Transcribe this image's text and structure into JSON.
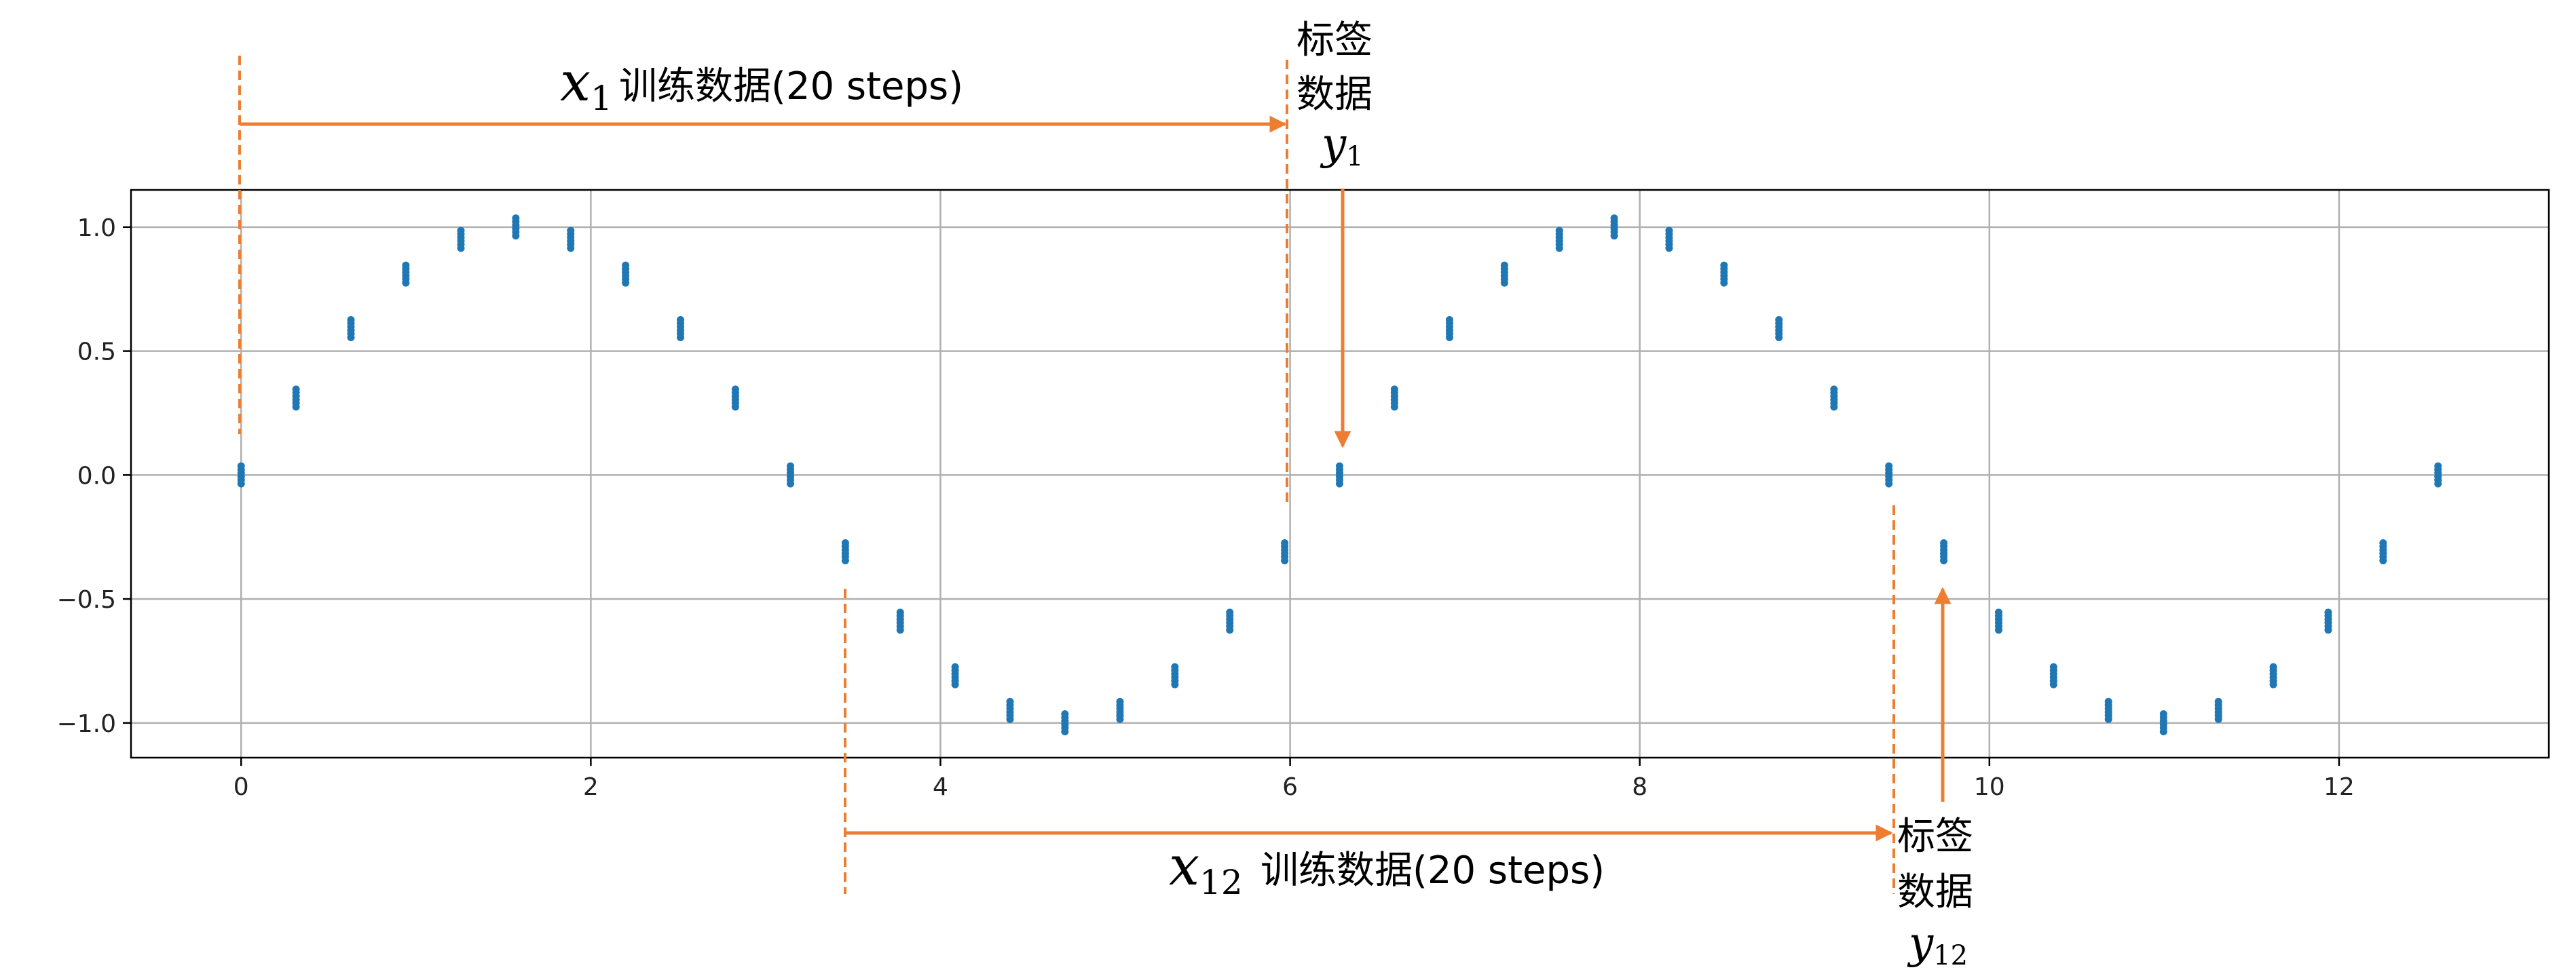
{
  "chart_data": {
    "type": "scatter",
    "title": "",
    "xlabel": "",
    "ylabel": "",
    "xlim": [
      -0.63,
      13.2
    ],
    "ylim": [
      -1.14,
      1.15
    ],
    "xticks": [
      0,
      2,
      4,
      6,
      8,
      10,
      12
    ],
    "yticks": [
      -1.0,
      -0.5,
      0.0,
      0.5,
      1.0
    ],
    "xtick_labels": [
      "0",
      "2",
      "4",
      "6",
      "8",
      "10",
      "12"
    ],
    "ytick_labels": [
      "−1.0",
      "−0.5",
      "0.0",
      "0.5",
      "1.0"
    ],
    "grid": true,
    "marker_color": "#1f77b4",
    "series": [
      {
        "x": [
          0,
          0.314,
          0.628,
          0.942,
          1.257,
          1.571,
          1.885,
          2.199,
          2.513,
          2.827,
          3.142,
          3.456,
          3.77,
          4.084,
          4.398,
          4.712,
          5.027,
          5.341,
          5.655,
          5.969,
          6.283,
          6.597,
          6.912,
          7.226,
          7.54,
          7.854,
          8.168,
          8.482,
          8.796,
          9.111,
          9.425,
          9.739,
          10.053,
          10.367,
          10.681,
          10.996,
          11.31,
          11.624,
          11.938,
          12.252,
          12.566
        ],
        "y": [
          0.0,
          0.31,
          0.59,
          0.81,
          0.95,
          1.0,
          0.95,
          0.81,
          0.59,
          0.31,
          0.0,
          -0.31,
          -0.59,
          -0.81,
          -0.95,
          -1.0,
          -0.95,
          -0.81,
          -0.59,
          -0.31,
          0.0,
          0.31,
          0.59,
          0.81,
          0.95,
          1.0,
          0.95,
          0.81,
          0.59,
          0.31,
          0.0,
          -0.31,
          -0.59,
          -0.81,
          -0.95,
          -1.0,
          -0.95,
          -0.81,
          -0.59,
          -0.31,
          0.0
        ]
      }
    ],
    "annotation_color": "#ed7d31",
    "annotations": {
      "top_span_var": "x",
      "top_span_sub": "1",
      "top_span_text": "训练数据(20 steps)",
      "top_label_line1": "标签",
      "top_label_line2": "数据",
      "top_label_var": "y",
      "top_label_sub": "1",
      "bottom_span_var": "x",
      "bottom_span_sub": "12",
      "bottom_span_text": "训练数据(20 steps)",
      "bottom_label_line1": "标签",
      "bottom_label_line2": "数据",
      "bottom_label_var": "y",
      "bottom_label_sub": "12"
    }
  }
}
